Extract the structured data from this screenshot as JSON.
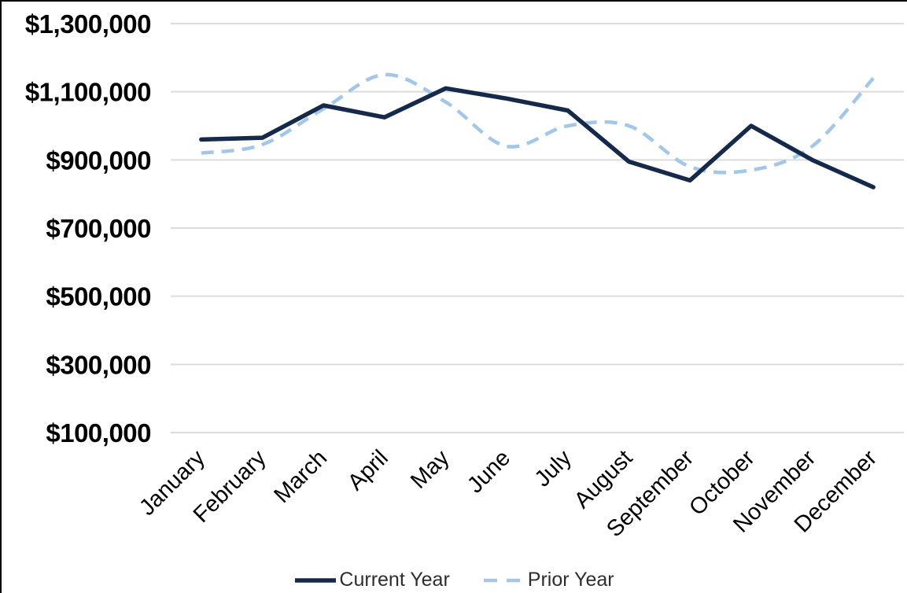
{
  "chart_data": {
    "type": "line",
    "title": "",
    "xlabel": "",
    "ylabel": "",
    "categories": [
      "January",
      "February",
      "March",
      "April",
      "May",
      "June",
      "July",
      "August",
      "September",
      "October",
      "November",
      "December"
    ],
    "series": [
      {
        "name": "Current Year",
        "color": "#15294b",
        "style": "solid",
        "smooth": false,
        "width": 5.5,
        "values": [
          960000,
          965000,
          1060000,
          1025000,
          1110000,
          1080000,
          1045000,
          895000,
          840000,
          1000000,
          900000,
          820000
        ]
      },
      {
        "name": "Prior Year",
        "color": "#a3c7e8",
        "style": "dashed",
        "smooth": true,
        "width": 4.5,
        "values": [
          920000,
          945000,
          1050000,
          1150000,
          1070000,
          940000,
          1000000,
          1000000,
          880000,
          870000,
          940000,
          1140000
        ]
      }
    ],
    "ylim": [
      100000,
      1300000
    ],
    "ytick_step": 200000,
    "yticks": [
      {
        "value": 1300000,
        "label": "$1,300,000"
      },
      {
        "value": 1100000,
        "label": "$1,100,000"
      },
      {
        "value": 900000,
        "label": "$900,000"
      },
      {
        "value": 700000,
        "label": "$700,000"
      },
      {
        "value": 500000,
        "label": "$500,000"
      },
      {
        "value": 300000,
        "label": "$300,000"
      },
      {
        "value": 100000,
        "label": "$100,000"
      }
    ],
    "grid": true,
    "legend_position": "bottom",
    "grid_color": "#dcdcdc",
    "axis_text_color": "#000000",
    "legend_text_color": "#2e2e2e"
  }
}
